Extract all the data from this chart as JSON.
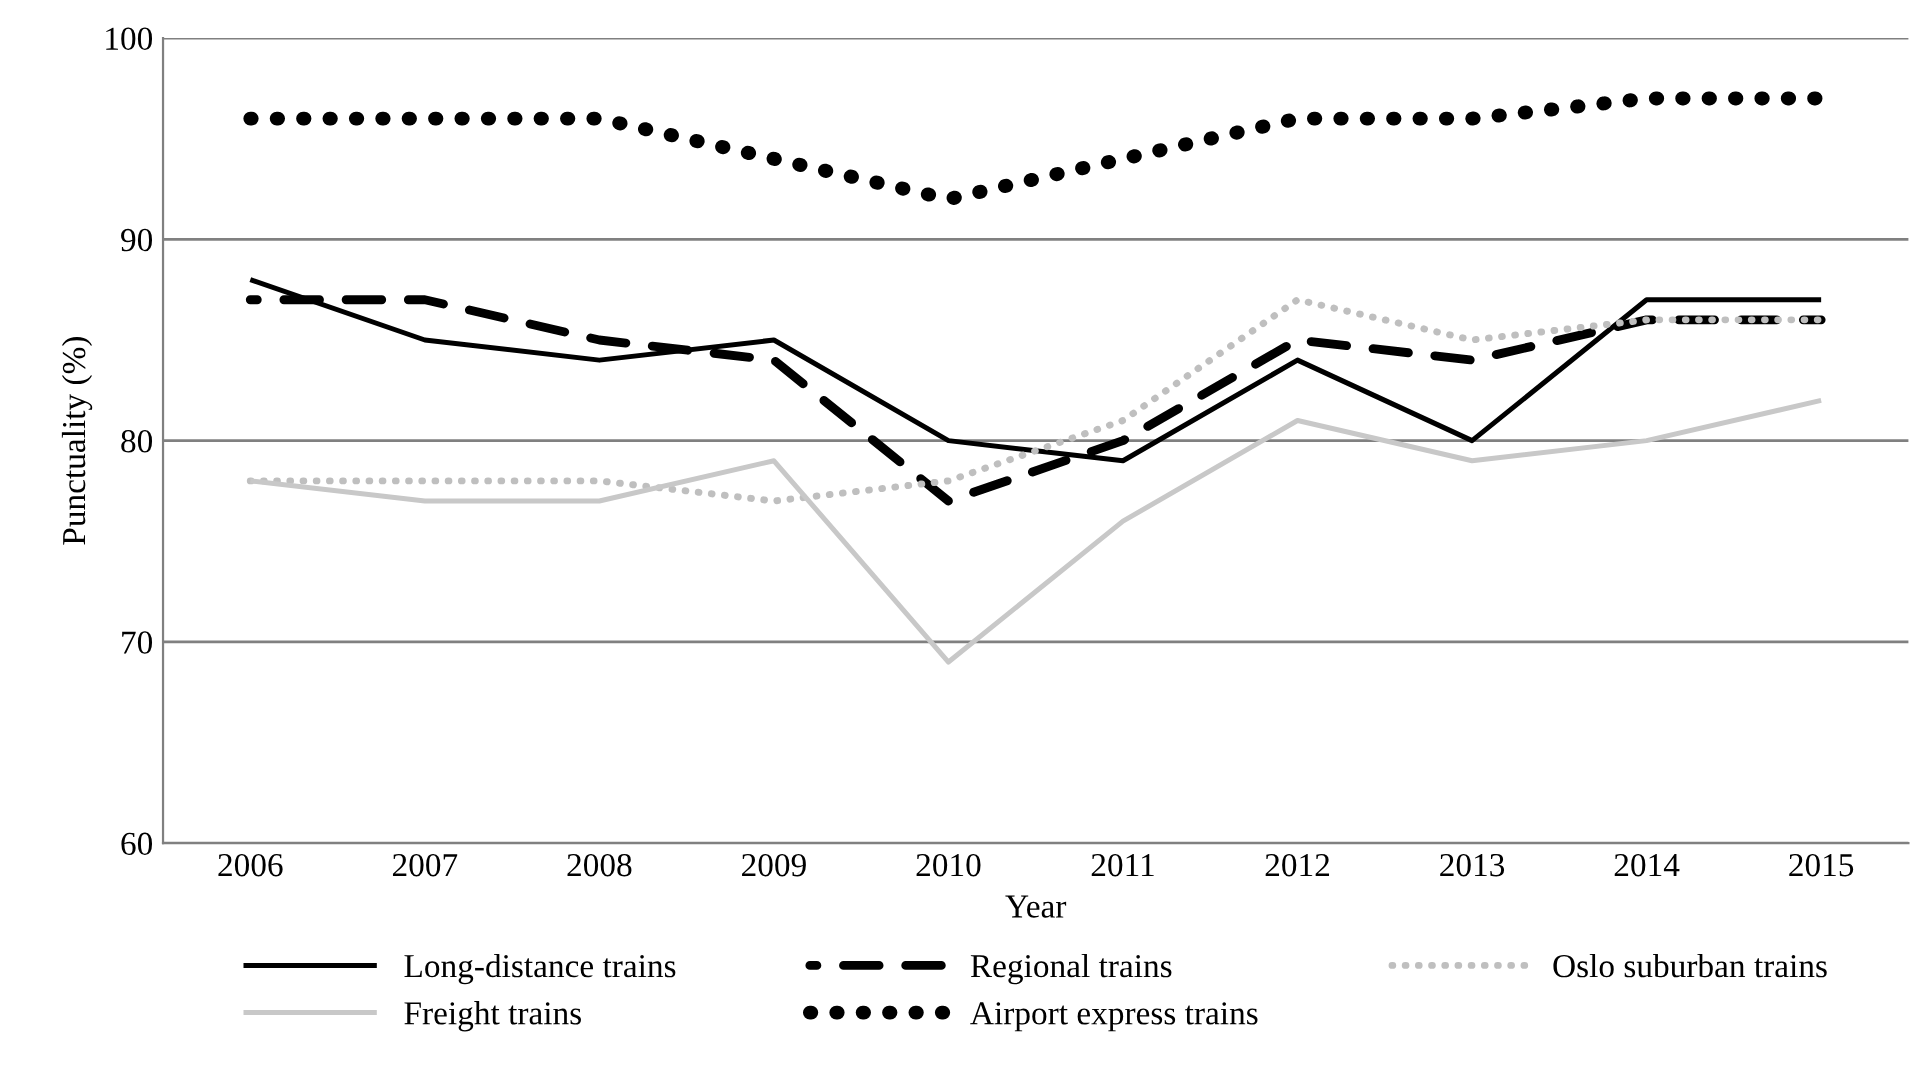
{
  "chart_data": {
    "type": "line",
    "xlabel": "Year",
    "ylabel": "Punctuality (%)",
    "categories": [
      "2006",
      "2007",
      "2008",
      "2009",
      "2010",
      "2011",
      "2012",
      "2013",
      "2014",
      "2015"
    ],
    "ylim": [
      60,
      100
    ],
    "yticks": [
      60,
      70,
      80,
      90,
      100
    ],
    "grid": "y",
    "legend": "bottom",
    "series": [
      {
        "name": "Long-distance trains",
        "color": "#000000",
        "line_style": "solid",
        "values": [
          88,
          85,
          84,
          85,
          80,
          79,
          84,
          80,
          87,
          87
        ]
      },
      {
        "name": "Regional trains",
        "color": "#000000",
        "line_style": "dashed",
        "values": [
          87,
          87,
          85,
          84,
          77,
          80,
          85,
          84,
          86,
          86
        ]
      },
      {
        "name": "Oslo suburban trains",
        "color": "#bfbfbf",
        "line_style": "dotted",
        "values": [
          78,
          78,
          78,
          77,
          78,
          81,
          87,
          85,
          86,
          86
        ]
      },
      {
        "name": "Freight trains",
        "color": "#c8c8c8",
        "line_style": "solid",
        "values": [
          78,
          77,
          77,
          79,
          69,
          76,
          81,
          79,
          80,
          82
        ]
      },
      {
        "name": "Airport express trains",
        "color": "#000000",
        "line_style": "dotted",
        "values": [
          96,
          96,
          96,
          94,
          92,
          94,
          96,
          96,
          97,
          97
        ]
      }
    ]
  }
}
